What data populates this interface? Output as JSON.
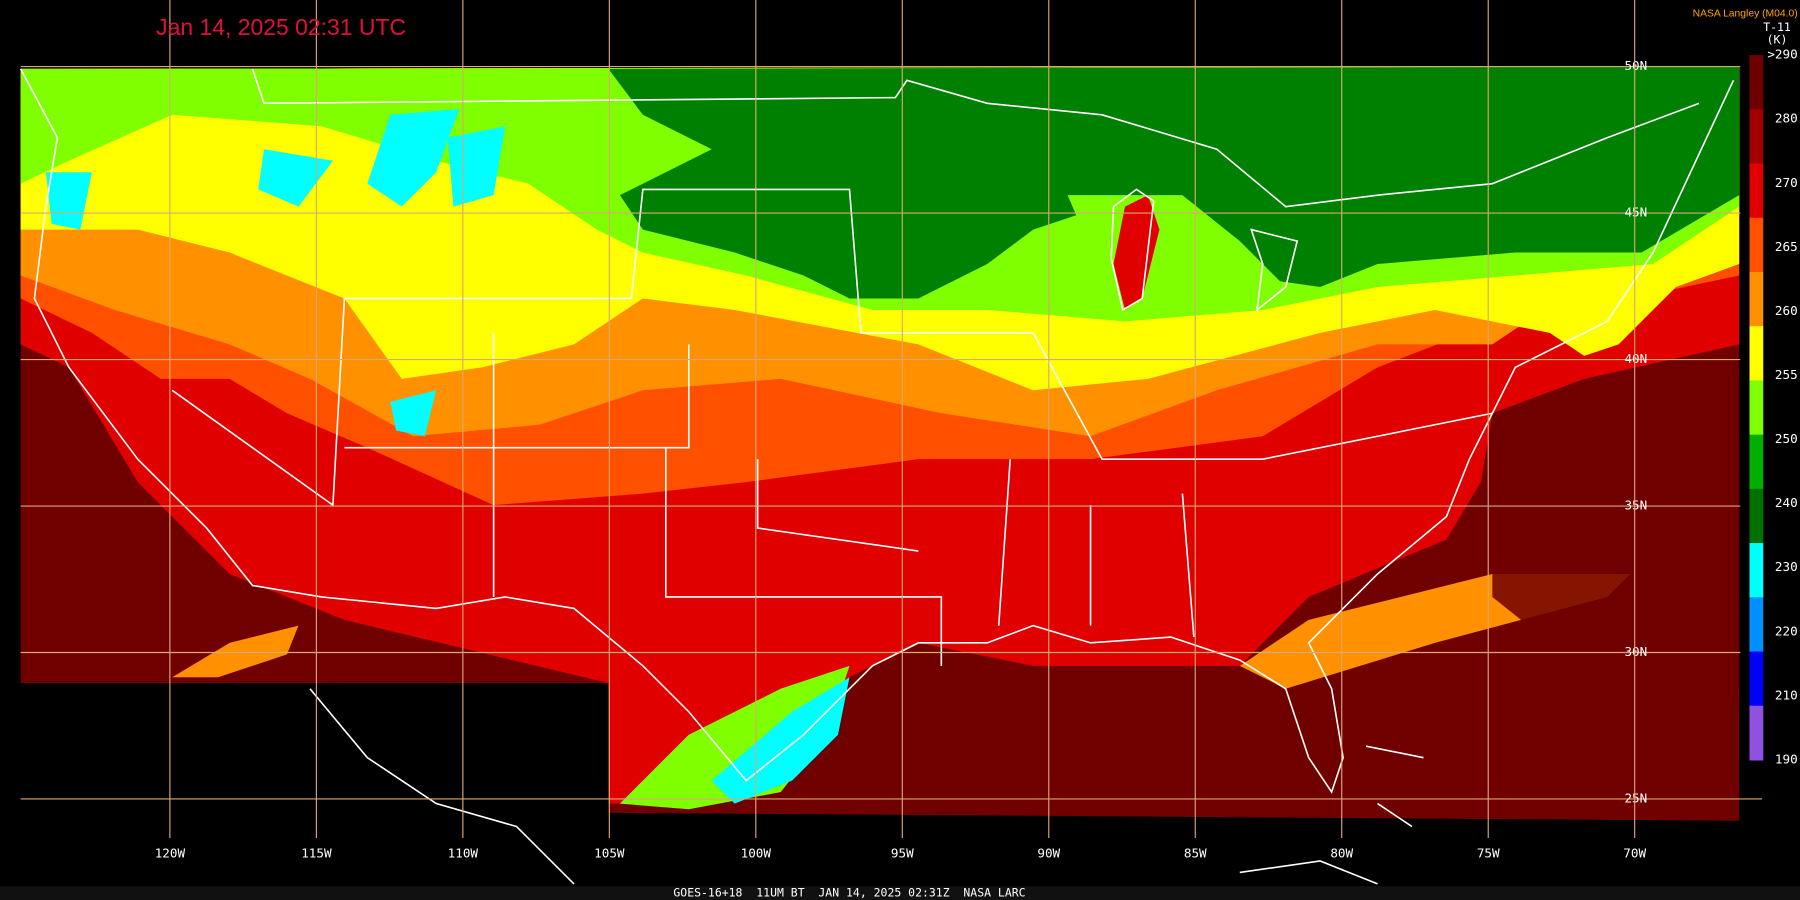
{
  "timestamp": "Jan 14, 2025 02:31 UTC",
  "source": "NASA Langley (M04.0)",
  "colorbar": {
    "title": "T-11",
    "unit": "(K)",
    "labels": [
      ">290",
      "280",
      "270",
      "265",
      "260",
      "255",
      "250",
      "240",
      "230",
      "220",
      "210",
      "190"
    ],
    "colors": [
      "#700000",
      "#a00000",
      "#e00000",
      "#ff5000",
      "#ff9000",
      "#ffff00",
      "#80ff00",
      "#00b000",
      "#007000",
      "#00ffff",
      "#0090ff",
      "#0000ff",
      "#9050e0"
    ]
  },
  "latitude_labels": [
    "50N",
    "45N",
    "40N",
    "35N",
    "30N",
    "25N"
  ],
  "longitude_labels": [
    "120W",
    "115W",
    "110W",
    "105W",
    "100W",
    "95W",
    "90W",
    "85W",
    "80W",
    "75W",
    "70W"
  ],
  "footer": "GOES-16+18  11UM BT  JAN 14, 2025 02:31Z  NASA LARC"
}
